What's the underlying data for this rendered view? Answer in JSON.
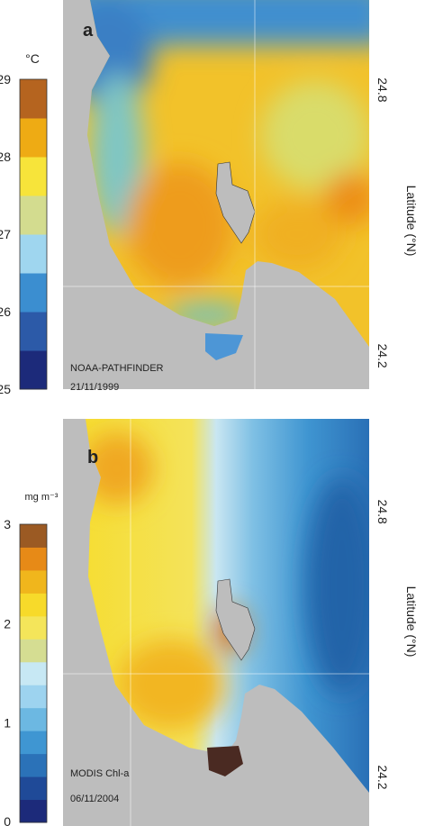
{
  "panels": [
    {
      "label": "a",
      "unit": "°C",
      "source": "NOAA-PATHFINDER",
      "date": "21/11/1999",
      "colorbar": {
        "lim": [
          25,
          29
        ],
        "ticks": [
          25,
          26,
          27,
          28,
          29
        ],
        "colors": [
          "#1c2a7a",
          "#2c5aa8",
          "#3b8ed0",
          "#9fd6ef",
          "#d3dc8f",
          "#f7e43a",
          "#eeab14",
          "#b5641f"
        ]
      },
      "latitude": {
        "label": "Latitude (°N)",
        "lim": [
          24.125,
          25.003
        ],
        "ticks": [
          24.2,
          24.8
        ]
      }
    },
    {
      "label": "b",
      "unit": "mg m⁻³",
      "source": "MODIS Chl-a",
      "date": "06/11/2004",
      "colorbar": {
        "lim": [
          0,
          3
        ],
        "ticks": [
          0,
          1,
          2,
          3
        ],
        "colors": [
          "#1c2a7a",
          "#1f4a98",
          "#2b72b8",
          "#3f96d2",
          "#6cb8e2",
          "#9dd3ef",
          "#c7e8f4",
          "#d5dd92",
          "#f4e55a",
          "#f7da2a",
          "#f0b61c",
          "#e78a17",
          "#9b5a23"
        ]
      },
      "latitude": {
        "label": "Latitude (°N)",
        "lim": [
          24.09,
          25.01
        ],
        "ticks": [
          24.2,
          24.8
        ]
      }
    }
  ]
}
